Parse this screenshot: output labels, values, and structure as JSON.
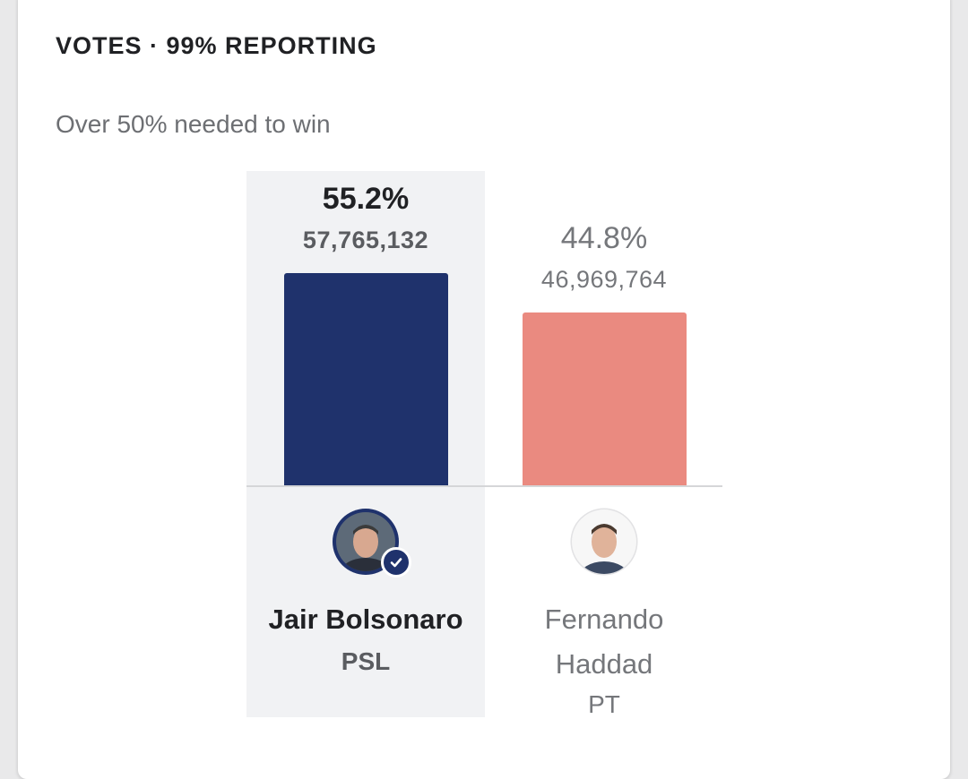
{
  "header": {
    "title": "VOTES · 99% REPORTING",
    "subtitle": "Over 50% needed to win"
  },
  "colors": {
    "winner_bar": "#1f326c",
    "runnerup_bar": "#ea8a80",
    "check_badge": "#1f326c"
  },
  "chart_data": {
    "type": "bar",
    "categories": [
      "Jair Bolsonaro",
      "Fernando Haddad"
    ],
    "values": [
      55.2,
      44.8
    ],
    "ylim": [
      0,
      100
    ],
    "grid": false,
    "candidates": [
      {
        "name": "Jair Bolsonaro",
        "party": "PSL",
        "percent_label": "55.2%",
        "votes_label": "57,765,132",
        "percent": 55.2,
        "winner": true,
        "icon": "checkmark-icon"
      },
      {
        "name": "Fernando Haddad",
        "party": "PT",
        "percent_label": "44.8%",
        "votes_label": "46,969,764",
        "percent": 44.8,
        "winner": false
      }
    ]
  }
}
